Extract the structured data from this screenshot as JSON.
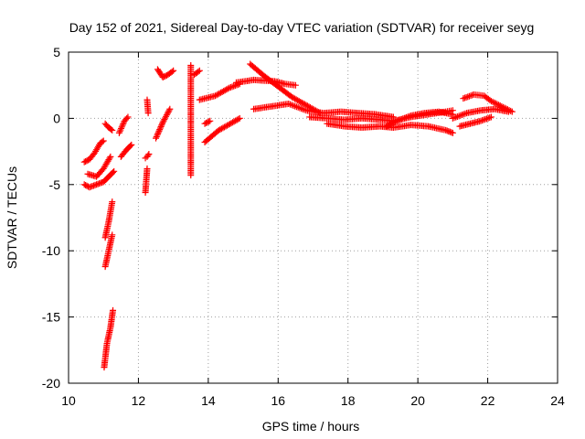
{
  "chart_data": {
    "type": "scatter",
    "title": "Day 152 of 2021, Sidereal Day-to-day VTEC variation (SDTVAR) for receiver seyg",
    "xlabel": "GPS time / hours",
    "ylabel": "SDTVAR / TECUs",
    "xlim": [
      10,
      24
    ],
    "ylim": [
      -20,
      5
    ],
    "xticks": [
      10,
      12,
      14,
      16,
      18,
      20,
      22,
      24
    ],
    "yticks": [
      -20,
      -15,
      -10,
      -5,
      0,
      5
    ],
    "grid": true,
    "marker": "+",
    "color": "#ff0000",
    "segments": [
      {
        "x": [
          10.45,
          10.6,
          10.75,
          10.9,
          11.0
        ],
        "y": [
          -3.3,
          -3.1,
          -2.6,
          -1.9,
          -1.7
        ]
      },
      {
        "x": [
          10.45,
          10.6,
          10.8,
          11.0,
          11.15,
          11.3
        ],
        "y": [
          -5.0,
          -5.2,
          -5.0,
          -4.8,
          -4.4,
          -4.0
        ]
      },
      {
        "x": [
          10.55,
          10.8,
          11.0,
          11.2
        ],
        "y": [
          -4.2,
          -4.4,
          -3.8,
          -2.9
        ]
      },
      {
        "x": [
          11.05,
          11.15,
          11.25
        ],
        "y": [
          -0.4,
          -0.7,
          -0.9
        ]
      },
      {
        "x": [
          11.45,
          11.6,
          11.7
        ],
        "y": [
          -1.1,
          -0.2,
          0.1
        ]
      },
      {
        "x": [
          11.5,
          11.65,
          11.8
        ],
        "y": [
          -2.9,
          -2.4,
          -2.0
        ]
      },
      {
        "x": [
          11.05,
          11.15,
          11.25
        ],
        "y": [
          -9.0,
          -7.8,
          -6.3
        ]
      },
      {
        "x": [
          11.05,
          11.15,
          11.25
        ],
        "y": [
          -11.2,
          -10.0,
          -8.8
        ]
      },
      {
        "x": [
          11.02,
          11.1,
          11.2,
          11.27
        ],
        "y": [
          -18.8,
          -17.0,
          -15.8,
          -14.5
        ]
      },
      {
        "x": [
          12.2,
          12.25
        ],
        "y": [
          -5.6,
          -3.8
        ]
      },
      {
        "x": [
          12.2,
          12.25,
          12.3
        ],
        "y": [
          -3.0,
          -2.9,
          -2.7
        ]
      },
      {
        "x": [
          12.25,
          12.28
        ],
        "y": [
          1.4,
          0.4
        ]
      },
      {
        "x": [
          12.5,
          12.7,
          12.9
        ],
        "y": [
          -1.5,
          -0.3,
          0.7
        ]
      },
      {
        "x": [
          12.55,
          12.7,
          12.85,
          13.0
        ],
        "y": [
          3.7,
          3.1,
          3.3,
          3.6
        ]
      },
      {
        "x": [
          13.5,
          13.5,
          13.5
        ],
        "y": [
          4.0,
          -3.2,
          -4.3
        ]
      },
      {
        "x": [
          13.6,
          13.75
        ],
        "y": [
          3.3,
          3.6
        ]
      },
      {
        "x": [
          13.75,
          14.2,
          14.6,
          14.9
        ],
        "y": [
          1.4,
          1.7,
          2.3,
          2.6
        ]
      },
      {
        "x": [
          13.9,
          14.05
        ],
        "y": [
          -0.4,
          -0.2
        ]
      },
      {
        "x": [
          13.9,
          14.3,
          14.7,
          14.9
        ],
        "y": [
          -1.8,
          -0.9,
          -0.3,
          0.0
        ]
      },
      {
        "x": [
          14.8,
          15.3,
          15.9,
          16.2,
          16.5
        ],
        "y": [
          2.7,
          2.9,
          2.8,
          2.6,
          2.5
        ]
      },
      {
        "x": [
          15.2,
          15.6,
          16.0,
          16.4,
          16.8,
          17.2
        ],
        "y": [
          4.1,
          3.2,
          2.4,
          1.6,
          1.0,
          0.4
        ]
      },
      {
        "x": [
          15.3,
          15.8,
          16.3,
          16.8,
          17.3,
          17.8,
          18.3,
          18.8,
          19.3
        ],
        "y": [
          0.7,
          0.9,
          1.1,
          0.6,
          0.4,
          0.5,
          0.4,
          0.3,
          0.1
        ]
      },
      {
        "x": [
          16.9,
          17.4,
          17.9,
          18.4,
          18.9,
          19.3,
          19.8,
          20.3,
          20.8,
          21.0
        ],
        "y": [
          0.1,
          0.0,
          -0.1,
          0.0,
          -0.1,
          -0.2,
          0.1,
          0.3,
          0.5,
          0.6
        ]
      },
      {
        "x": [
          17.4,
          17.9,
          18.4,
          18.9,
          19.3,
          19.8,
          20.3,
          20.8,
          21.0
        ],
        "y": [
          -0.4,
          -0.6,
          -0.7,
          -0.6,
          -0.7,
          -0.5,
          -0.6,
          -0.9,
          -1.1
        ]
      },
      {
        "x": [
          19.1,
          19.4,
          19.8,
          20.2,
          20.6,
          21.0
        ],
        "y": [
          -0.6,
          -0.2,
          0.2,
          0.4,
          0.5,
          0.3
        ]
      },
      {
        "x": [
          21.3,
          21.6,
          21.9,
          22.1,
          22.4,
          22.7
        ],
        "y": [
          1.5,
          1.8,
          1.7,
          1.3,
          0.9,
          0.5
        ]
      },
      {
        "x": [
          21.0,
          21.4,
          21.8,
          22.2,
          22.6
        ],
        "y": [
          0.0,
          0.4,
          0.6,
          0.7,
          0.5
        ]
      },
      {
        "x": [
          21.2,
          21.5,
          21.8,
          22.1
        ],
        "y": [
          -0.6,
          -0.4,
          -0.2,
          0.1
        ]
      }
    ]
  }
}
